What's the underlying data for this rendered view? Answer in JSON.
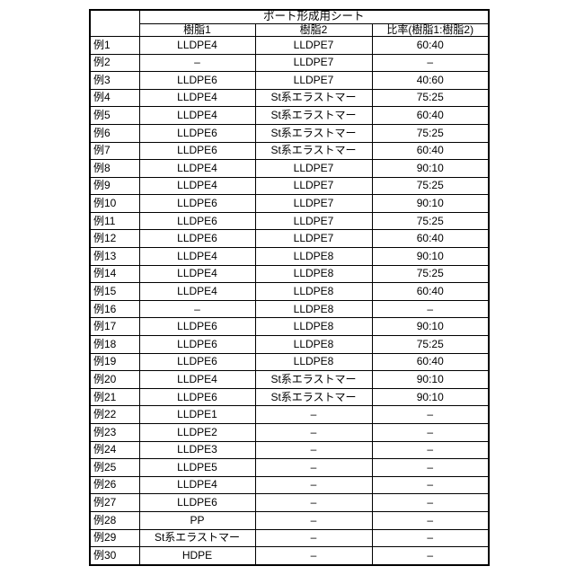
{
  "table": {
    "title": "ポート形成用シート",
    "columns": [
      "樹脂1",
      "樹脂2",
      "比率(樹脂1:樹脂2)"
    ],
    "rows": [
      {
        "label": "例1",
        "resin1": "LLDPE4",
        "resin2": "LLDPE7",
        "ratio": "60:40"
      },
      {
        "label": "例2",
        "resin1": "–",
        "resin2": "LLDPE7",
        "ratio": "–"
      },
      {
        "label": "例3",
        "resin1": "LLDPE6",
        "resin2": "LLDPE7",
        "ratio": "40:60"
      },
      {
        "label": "例4",
        "resin1": "LLDPE4",
        "resin2": "St系エラストマー",
        "ratio": "75:25"
      },
      {
        "label": "例5",
        "resin1": "LLDPE4",
        "resin2": "St系エラストマー",
        "ratio": "60:40"
      },
      {
        "label": "例6",
        "resin1": "LLDPE6",
        "resin2": "St系エラストマー",
        "ratio": "75:25"
      },
      {
        "label": "例7",
        "resin1": "LLDPE6",
        "resin2": "St系エラストマー",
        "ratio": "60:40"
      },
      {
        "label": "例8",
        "resin1": "LLDPE4",
        "resin2": "LLDPE7",
        "ratio": "90:10"
      },
      {
        "label": "例9",
        "resin1": "LLDPE4",
        "resin2": "LLDPE7",
        "ratio": "75:25"
      },
      {
        "label": "例10",
        "resin1": "LLDPE6",
        "resin2": "LLDPE7",
        "ratio": "90:10"
      },
      {
        "label": "例11",
        "resin1": "LLDPE6",
        "resin2": "LLDPE7",
        "ratio": "75:25"
      },
      {
        "label": "例12",
        "resin1": "LLDPE6",
        "resin2": "LLDPE7",
        "ratio": "60:40"
      },
      {
        "label": "例13",
        "resin1": "LLDPE4",
        "resin2": "LLDPE8",
        "ratio": "90:10"
      },
      {
        "label": "例14",
        "resin1": "LLDPE4",
        "resin2": "LLDPE8",
        "ratio": "75:25"
      },
      {
        "label": "例15",
        "resin1": "LLDPE4",
        "resin2": "LLDPE8",
        "ratio": "60:40"
      },
      {
        "label": "例16",
        "resin1": "–",
        "resin2": "LLDPE8",
        "ratio": "–"
      },
      {
        "label": "例17",
        "resin1": "LLDPE6",
        "resin2": "LLDPE8",
        "ratio": "90:10"
      },
      {
        "label": "例18",
        "resin1": "LLDPE6",
        "resin2": "LLDPE8",
        "ratio": "75:25"
      },
      {
        "label": "例19",
        "resin1": "LLDPE6",
        "resin2": "LLDPE8",
        "ratio": "60:40"
      },
      {
        "label": "例20",
        "resin1": "LLDPE4",
        "resin2": "St系エラストマー",
        "ratio": "90:10"
      },
      {
        "label": "例21",
        "resin1": "LLDPE6",
        "resin2": "St系エラストマー",
        "ratio": "90:10"
      },
      {
        "label": "例22",
        "resin1": "LLDPE1",
        "resin2": "–",
        "ratio": "–"
      },
      {
        "label": "例23",
        "resin1": "LLDPE2",
        "resin2": "–",
        "ratio": "–"
      },
      {
        "label": "例24",
        "resin1": "LLDPE3",
        "resin2": "–",
        "ratio": "–"
      },
      {
        "label": "例25",
        "resin1": "LLDPE5",
        "resin2": "–",
        "ratio": "–"
      },
      {
        "label": "例26",
        "resin1": "LLDPE4",
        "resin2": "–",
        "ratio": "–"
      },
      {
        "label": "例27",
        "resin1": "LLDPE6",
        "resin2": "–",
        "ratio": "–"
      },
      {
        "label": "例28",
        "resin1": "PP",
        "resin2": "–",
        "ratio": "–"
      },
      {
        "label": "例29",
        "resin1": "St系エラストマー",
        "resin2": "–",
        "ratio": "–"
      },
      {
        "label": "例30",
        "resin1": "HDPE",
        "resin2": "–",
        "ratio": "–"
      }
    ]
  },
  "colors": {
    "background": "#ffffff",
    "border": "#000000",
    "text": "#000000"
  }
}
